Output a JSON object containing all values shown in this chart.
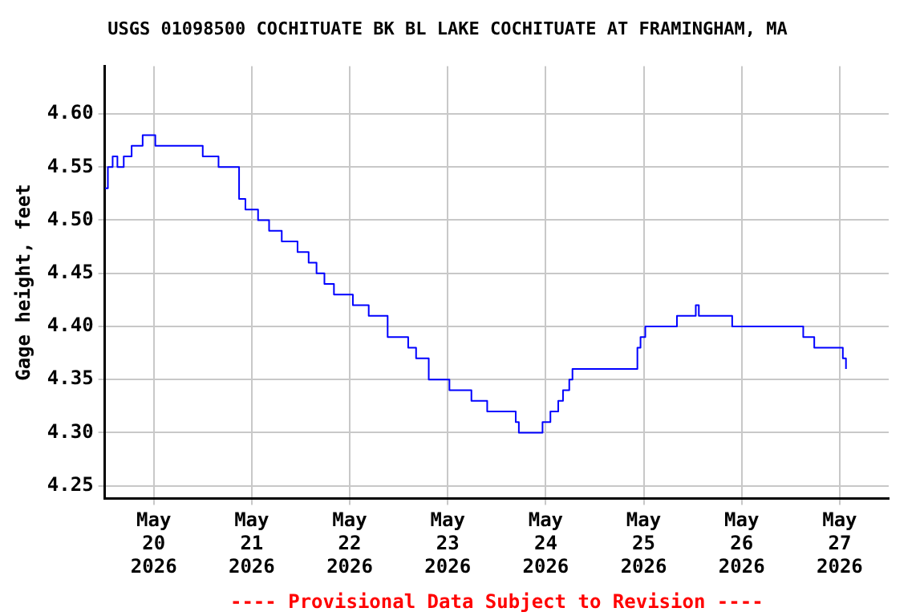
{
  "chart_data": {
    "type": "step",
    "title": "USGS 01098500 COCHITUATE BK BL LAKE COCHITUATE AT FRAMINGHAM, MA",
    "ylabel": "Gage height, feet",
    "annotations": [
      "---- Provisional Data Subject to Revision ----"
    ],
    "x": [
      "2026-05-19T12:00",
      "2026-05-19T12:46",
      "2026-05-19T13:56",
      "2026-05-19T15:06",
      "2026-05-19T16:39",
      "2026-05-19T18:35",
      "2026-05-19T21:17",
      "2026-05-20T00:23",
      "2026-05-20T04:15",
      "2026-05-20T08:08",
      "2026-05-20T12:00",
      "2026-05-20T13:56",
      "2026-05-20T15:52",
      "2026-05-20T18:58",
      "2026-05-20T20:54",
      "2026-05-20T22:27",
      "2026-05-21T01:33",
      "2026-05-21T04:15",
      "2026-05-21T07:21",
      "2026-05-21T09:17",
      "2026-05-21T11:13",
      "2026-05-21T13:56",
      "2026-05-21T15:52",
      "2026-05-21T17:48",
      "2026-05-21T20:08",
      "2026-05-21T22:50",
      "2026-05-22T00:46",
      "2026-05-22T04:39",
      "2026-05-22T06:35",
      "2026-05-22T09:17",
      "2026-05-22T12:23",
      "2026-05-22T14:19",
      "2026-05-22T16:15",
      "2026-05-22T19:21",
      "2026-05-22T22:04",
      "2026-05-23T00:25",
      "2026-05-23T05:48",
      "2026-05-23T09:40",
      "2026-05-23T13:33",
      "2026-05-23T16:39",
      "2026-05-23T17:25",
      "2026-05-23T21:17",
      "2026-05-23T23:13",
      "2026-05-24T01:09",
      "2026-05-24T03:04",
      "2026-05-24T04:14",
      "2026-05-24T05:46",
      "2026-05-24T06:33",
      "2026-05-24T10:50",
      "2026-05-24T16:38",
      "2026-05-24T21:40",
      "2026-05-24T22:27",
      "2026-05-24T23:13",
      "2026-05-25T00:23",
      "2026-05-25T04:15",
      "2026-05-25T08:08",
      "2026-05-25T12:00",
      "2026-05-25T12:45",
      "2026-05-25T13:30",
      "2026-05-25T15:52",
      "2026-05-25T21:40",
      "2026-05-26T03:27",
      "2026-05-26T09:15",
      "2026-05-26T12:21",
      "2026-05-26T15:04",
      "2026-05-26T17:00",
      "2026-05-26T17:46",
      "2026-05-27T00:46",
      "2026-05-27T01:32"
    ],
    "series": [
      {
        "color": "#0000ff",
        "values": [
          4.53,
          4.55,
          4.56,
          4.55,
          4.56,
          4.57,
          4.58,
          4.57,
          4.57,
          4.57,
          4.56,
          4.56,
          4.55,
          4.55,
          4.52,
          4.51,
          4.5,
          4.49,
          4.48,
          4.48,
          4.47,
          4.46,
          4.45,
          4.44,
          4.43,
          4.43,
          4.42,
          4.41,
          4.41,
          4.39,
          4.39,
          4.38,
          4.37,
          4.35,
          4.35,
          4.34,
          4.33,
          4.32,
          4.32,
          4.31,
          4.3,
          4.3,
          4.31,
          4.32,
          4.33,
          4.34,
          4.35,
          4.36,
          4.36,
          4.36,
          4.36,
          4.38,
          4.39,
          4.4,
          4.4,
          4.41,
          4.41,
          4.42,
          4.41,
          4.41,
          4.4,
          4.4,
          4.4,
          4.4,
          4.39,
          4.39,
          4.38,
          4.37,
          4.36
        ]
      }
    ],
    "xlim": [
      "2026-05-19T12:00",
      "2026-05-27T12:00"
    ],
    "xticks": [
      {
        "value": "2026-05-20",
        "label": "May 20 2026"
      },
      {
        "value": "2026-05-21",
        "label": "May 21 2026"
      },
      {
        "value": "2026-05-22",
        "label": "May 22 2026"
      },
      {
        "value": "2026-05-23",
        "label": "May 23 2026"
      },
      {
        "value": "2026-05-24",
        "label": "May 24 2026"
      },
      {
        "value": "2026-05-25",
        "label": "May 25 2026"
      },
      {
        "value": "2026-05-26",
        "label": "May 26 2026"
      },
      {
        "value": "2026-05-27",
        "label": "May 27 2026"
      }
    ],
    "ylim": [
      4.238,
      4.645
    ],
    "yticks": [
      {
        "value": 4.25,
        "label": "4.25"
      },
      {
        "value": 4.3,
        "label": "4.30"
      },
      {
        "value": 4.35,
        "label": "4.35"
      },
      {
        "value": 4.4,
        "label": "4.40"
      },
      {
        "value": 4.45,
        "label": "4.45"
      },
      {
        "value": 4.5,
        "label": "4.50"
      },
      {
        "value": 4.55,
        "label": "4.55"
      },
      {
        "value": 4.6,
        "label": "4.60"
      }
    ],
    "grid": true,
    "legend": false
  }
}
